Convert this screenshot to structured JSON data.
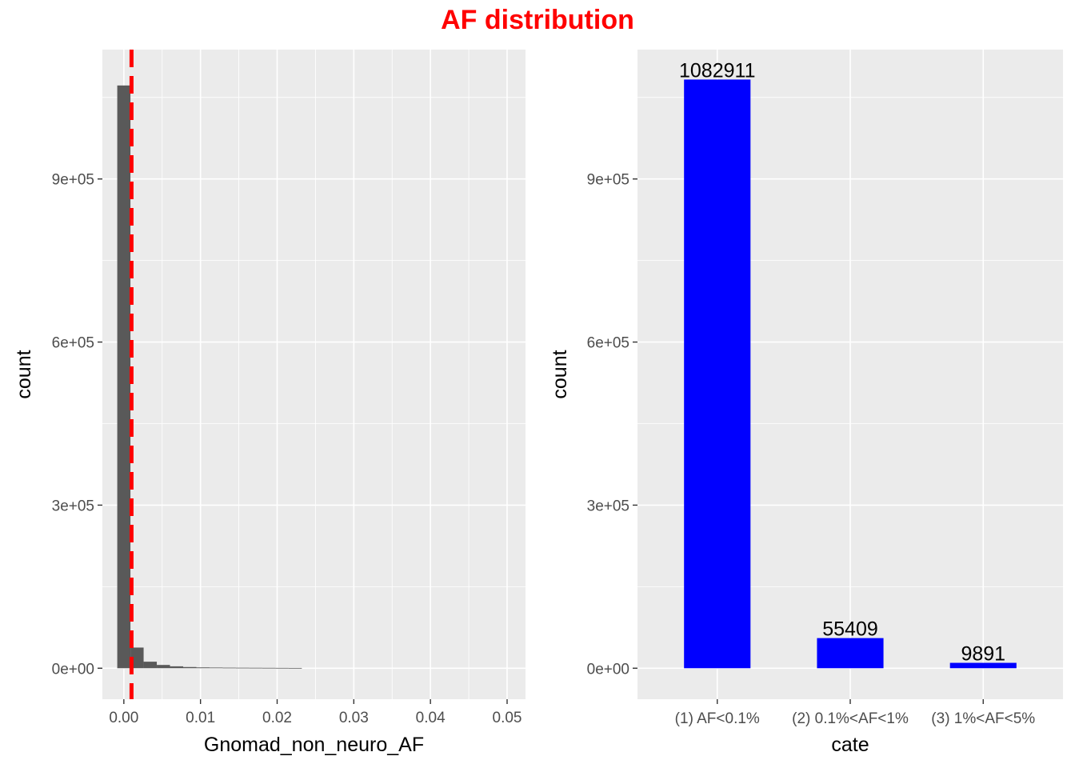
{
  "title": "AF distribution",
  "colors": {
    "title": "#ff0000",
    "histogram_fill": "#595959",
    "vline": "#ff0000",
    "bar_fill": "#0000ff",
    "panel_bg": "#ebebeb",
    "grid": "#ffffff"
  },
  "chart_data": [
    {
      "type": "bar",
      "subtype": "histogram",
      "xlabel": "Gnomad_non_neuro_AF",
      "ylabel": "count",
      "x_ticks": [
        0.0,
        0.01,
        0.02,
        0.03,
        0.04,
        0.05
      ],
      "x_tick_labels": [
        "0.00",
        "0.01",
        "0.02",
        "0.03",
        "0.04",
        "0.05"
      ],
      "y_ticks": [
        0,
        300000,
        600000,
        900000
      ],
      "y_tick_labels": [
        "0e+00",
        "3e+05",
        "6e+05",
        "9e+05"
      ],
      "xlim": [
        -0.0028,
        0.0524
      ],
      "ylim": [
        -57000,
        1138000
      ],
      "bin_width": 0.00172,
      "bins": [
        {
          "x_start": -0.00086,
          "count": 1072000
        },
        {
          "x_start": 0.00086,
          "count": 38000
        },
        {
          "x_start": 0.00258,
          "count": 12000
        },
        {
          "x_start": 0.0043,
          "count": 6000
        },
        {
          "x_start": 0.00602,
          "count": 3500
        },
        {
          "x_start": 0.00774,
          "count": 2200
        },
        {
          "x_start": 0.00946,
          "count": 1500
        },
        {
          "x_start": 0.01118,
          "count": 1200
        },
        {
          "x_start": 0.0129,
          "count": 1000
        },
        {
          "x_start": 0.01462,
          "count": 900
        },
        {
          "x_start": 0.01634,
          "count": 800
        },
        {
          "x_start": 0.01806,
          "count": 700
        },
        {
          "x_start": 0.01978,
          "count": 600
        },
        {
          "x_start": 0.0215,
          "count": 500
        }
      ],
      "vline": {
        "x": 0.001,
        "style": "dashed"
      },
      "grid": true
    },
    {
      "type": "bar",
      "xlabel": "cate",
      "ylabel": "count",
      "categories": [
        "(1) AF<0.1%",
        "(2) 0.1%<AF<1%",
        "(3) 1%<AF<5%"
      ],
      "values": [
        1082911,
        55409,
        9891
      ],
      "data_labels": [
        "1082911",
        "55409",
        "9891"
      ],
      "y_ticks": [
        0,
        300000,
        600000,
        900000
      ],
      "y_tick_labels": [
        "0e+00",
        "3e+05",
        "6e+05",
        "9e+05"
      ],
      "ylim": [
        -57000,
        1138000
      ],
      "grid": true
    }
  ]
}
